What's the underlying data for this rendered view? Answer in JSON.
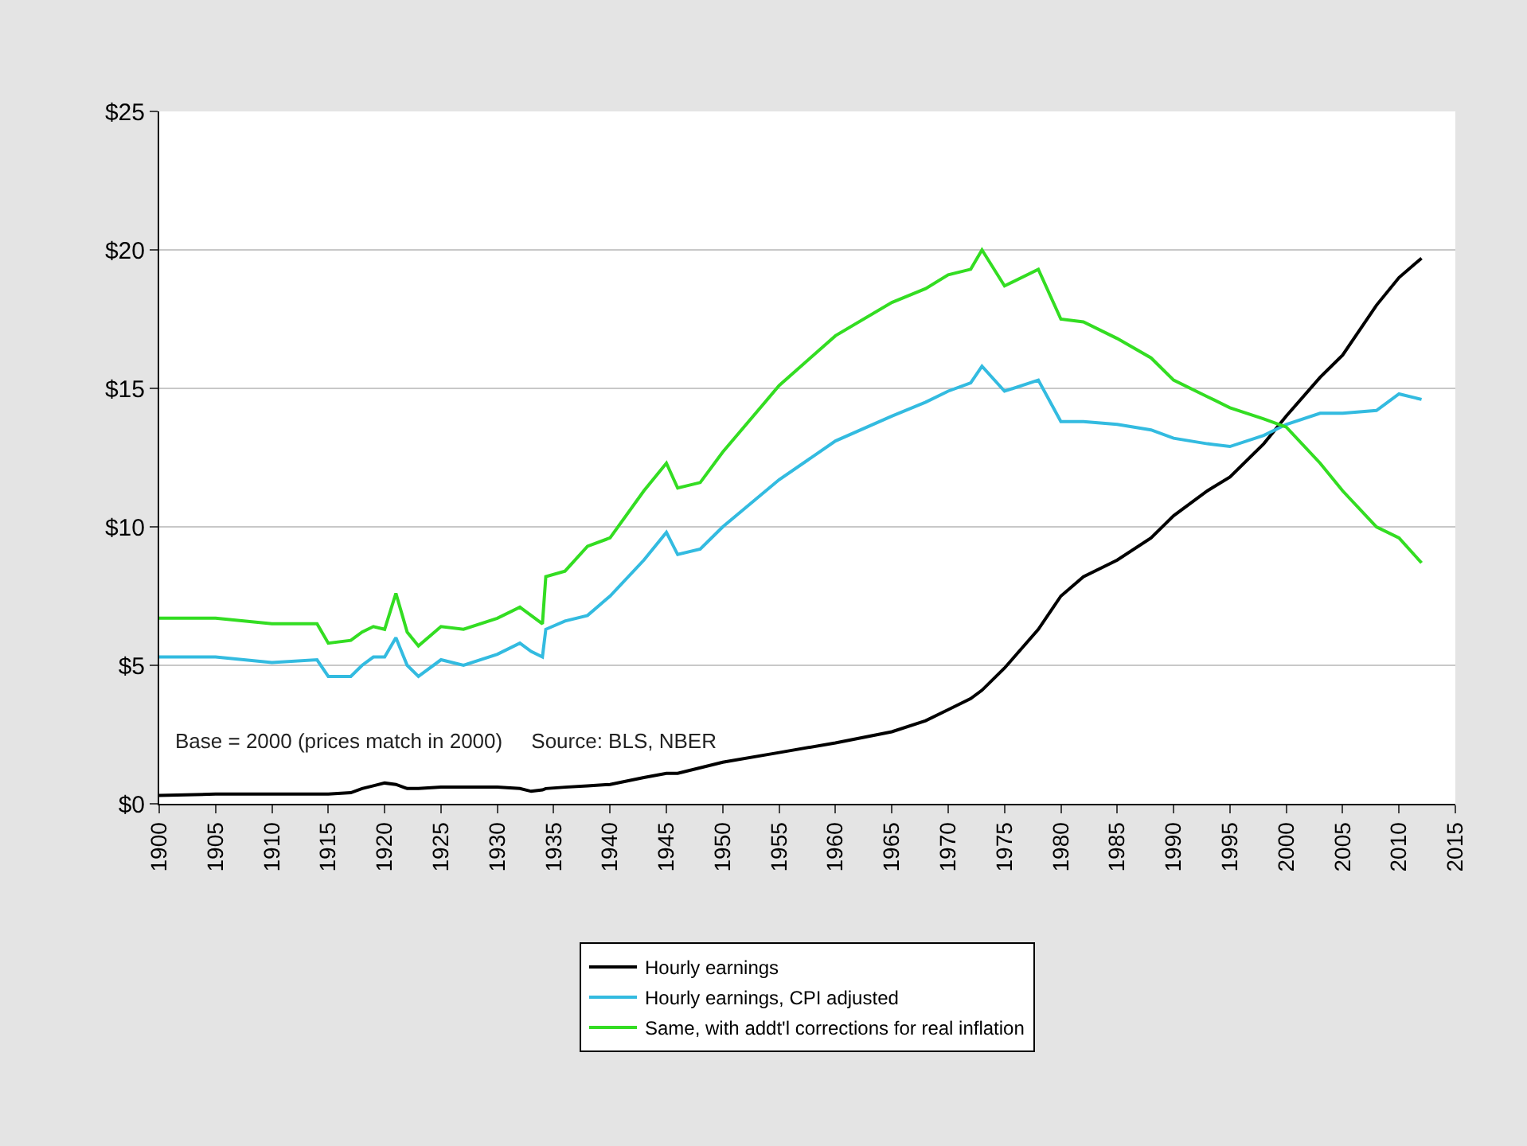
{
  "chart_data": {
    "type": "line",
    "x": [
      1900,
      1905,
      1910,
      1914,
      1915,
      1917,
      1918,
      1919,
      1920,
      1921,
      1922,
      1923,
      1925,
      1927,
      1930,
      1932,
      1933,
      1934,
      1934.3,
      1936,
      1938,
      1940,
      1943,
      1945,
      1946,
      1948,
      1950,
      1955,
      1960,
      1965,
      1968,
      1970,
      1972,
      1973,
      1975,
      1978,
      1980,
      1982,
      1985,
      1988,
      1990,
      1993,
      1995,
      1998,
      2000,
      2003,
      2005,
      2008,
      2010,
      2012
    ],
    "series": [
      {
        "name": "Hourly earnings",
        "color": "#000000",
        "values": [
          0.3,
          0.35,
          0.35,
          0.35,
          0.35,
          0.4,
          0.55,
          0.65,
          0.75,
          0.7,
          0.55,
          0.55,
          0.6,
          0.6,
          0.6,
          0.55,
          0.45,
          0.5,
          0.55,
          0.6,
          0.65,
          0.7,
          0.95,
          1.1,
          1.1,
          1.3,
          1.5,
          1.85,
          2.2,
          2.6,
          3.0,
          3.4,
          3.8,
          4.1,
          4.9,
          6.3,
          7.5,
          8.2,
          8.8,
          9.6,
          10.4,
          11.3,
          11.8,
          13.0,
          14.0,
          15.4,
          16.2,
          18.0,
          19.0,
          19.7
        ]
      },
      {
        "name": "Hourly earnings, CPI adjusted",
        "color": "#33bbe0",
        "values": [
          5.3,
          5.3,
          5.1,
          5.2,
          4.6,
          4.6,
          5.0,
          5.3,
          5.3,
          6.0,
          5.0,
          4.6,
          5.2,
          5.0,
          5.4,
          5.8,
          5.5,
          5.3,
          6.3,
          6.6,
          6.8,
          7.5,
          8.8,
          9.8,
          9.0,
          9.2,
          10.0,
          11.7,
          13.1,
          14.0,
          14.5,
          14.9,
          15.2,
          15.8,
          14.9,
          15.3,
          13.8,
          13.8,
          13.7,
          13.5,
          13.2,
          13.0,
          12.9,
          13.3,
          13.7,
          14.1,
          14.1,
          14.2,
          14.8,
          14.6
        ]
      },
      {
        "name": "Same, with addt'l corrections for real inflation",
        "color": "#33dd22",
        "values": [
          6.7,
          6.7,
          6.5,
          6.5,
          5.8,
          5.9,
          6.2,
          6.4,
          6.3,
          7.6,
          6.2,
          5.7,
          6.4,
          6.3,
          6.7,
          7.1,
          6.8,
          6.5,
          8.2,
          8.4,
          9.3,
          9.6,
          11.3,
          12.3,
          11.4,
          11.6,
          12.7,
          15.1,
          16.9,
          18.1,
          18.6,
          19.1,
          19.3,
          20.0,
          18.7,
          19.3,
          17.5,
          17.4,
          16.8,
          16.1,
          15.3,
          14.7,
          14.3,
          13.9,
          13.6,
          12.3,
          11.3,
          10.0,
          9.6,
          8.7
        ]
      }
    ],
    "xlim": [
      1900,
      2015
    ],
    "xticks": [
      1900,
      1905,
      1910,
      1915,
      1920,
      1925,
      1930,
      1935,
      1940,
      1945,
      1950,
      1955,
      1960,
      1965,
      1970,
      1975,
      1980,
      1985,
      1990,
      1995,
      2000,
      2005,
      2010,
      2015
    ],
    "ylim": [
      0,
      25
    ],
    "yticks": [
      {
        "value": 0,
        "label": "$0"
      },
      {
        "value": 5,
        "label": "$5"
      },
      {
        "value": 10,
        "label": "$10"
      },
      {
        "value": 15,
        "label": "$15"
      },
      {
        "value": 20,
        "label": "$20"
      },
      {
        "value": 25,
        "label": "$25"
      }
    ],
    "grid": "y",
    "legend": "bottom",
    "marker": "none",
    "line_style": "solid",
    "annotations": [
      "Base = 2000 (prices match in 2000)     Source: BLS, NBER"
    ]
  }
}
